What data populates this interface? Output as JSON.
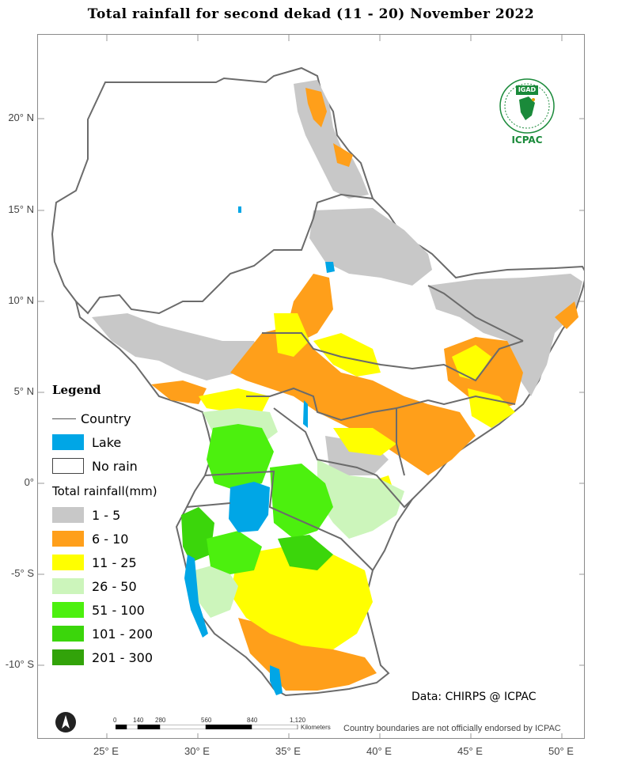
{
  "title": "Total rainfall  for  second  dekad (11 - 20)  November 2022",
  "colors": {
    "country_border": "#6b6b6b",
    "lake": "#00a6e6",
    "no_rain": "#ffffff",
    "r1_5": "#c8c8c8",
    "r6_10": "#ff9f1a",
    "r11_25": "#ffff00",
    "r26_50": "#ccf5bb",
    "r51_100": "#4cf00e",
    "r101_200": "#3bd60b",
    "r201_300": "#32a30a",
    "logo_green": "#1a8a3a"
  },
  "lat_labels": [
    "20° N",
    "15° N",
    "10° N",
    "5° N",
    "0°",
    "-5° S",
    "-10° S"
  ],
  "lon_labels": [
    "25° E",
    "30° E",
    "35° E",
    "40° E",
    "45° E",
    "50° E"
  ],
  "legend": {
    "title": "Legend",
    "country": "Country",
    "lake": "Lake",
    "no_rain": "No rain",
    "subtitle": "Total rainfall(mm)",
    "classes": [
      {
        "label": "1 - 5",
        "color": "#c8c8c8"
      },
      {
        "label": "6 - 10",
        "color": "#ff9f1a"
      },
      {
        "label": "11 - 25",
        "color": "#ffff00"
      },
      {
        "label": "26 - 50",
        "color": "#ccf5bb"
      },
      {
        "label": "51 - 100",
        "color": "#4cf00e"
      },
      {
        "label": "101 - 200",
        "color": "#3bd60b"
      },
      {
        "label": "201 - 300",
        "color": "#32a30a"
      }
    ]
  },
  "scale": {
    "ticks": [
      "0",
      "140",
      "280",
      "560",
      "840",
      "1,120"
    ],
    "unit": "Kilometers"
  },
  "logo": {
    "top_text": "IGAD",
    "bottom_text": "ICPAC"
  },
  "credit": "Data: CHIRPS @ ICPAC",
  "disclaimer": "Country boundaries are not officially endorsed by ICPAC"
}
